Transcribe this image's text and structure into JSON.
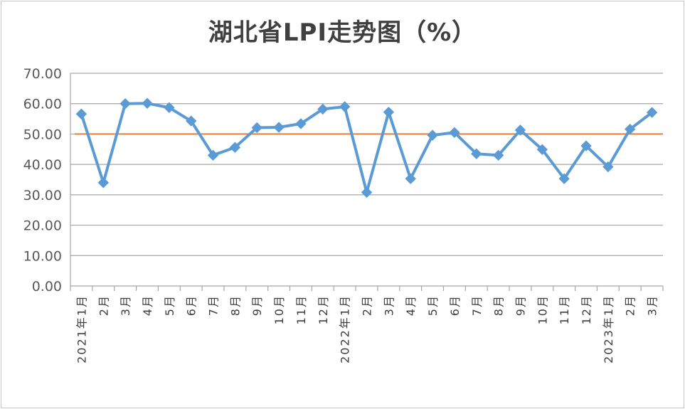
{
  "chart_data": {
    "type": "line",
    "title": "湖北省LPI走势图（%）",
    "categories": [
      "2021年1月",
      "2月",
      "3月",
      "4月",
      "5月",
      "6月",
      "7月",
      "8月",
      "9月",
      "10月",
      "11月",
      "12月",
      "2022年1月",
      "2月",
      "3月",
      "4月",
      "5月",
      "6月",
      "7月",
      "8月",
      "9月",
      "10月",
      "11月",
      "12月",
      "2023年1月",
      "2月",
      "3月"
    ],
    "series": [
      {
        "values": [
          56.6,
          34.0,
          60.0,
          60.1,
          58.7,
          54.3,
          43.0,
          45.6,
          52.1,
          52.2,
          53.4,
          58.2,
          59.0,
          30.8,
          57.2,
          35.3,
          49.6,
          50.5,
          43.5,
          43.0,
          51.3,
          44.9,
          35.3,
          46.1,
          39.2,
          51.6,
          57.1
        ],
        "color": "#5b9bd5",
        "marker": "diamond"
      }
    ],
    "reference_line": {
      "value": 50,
      "color": "#ed7d31"
    },
    "ylim": [
      0,
      70
    ],
    "yticks": [
      "0.00",
      "10.00",
      "20.00",
      "30.00",
      "40.00",
      "50.00",
      "60.00",
      "70.00"
    ],
    "ytick_values": [
      0,
      10,
      20,
      30,
      40,
      50,
      60,
      70
    ],
    "grid": true,
    "grid_color": "#a6a6a6"
  }
}
